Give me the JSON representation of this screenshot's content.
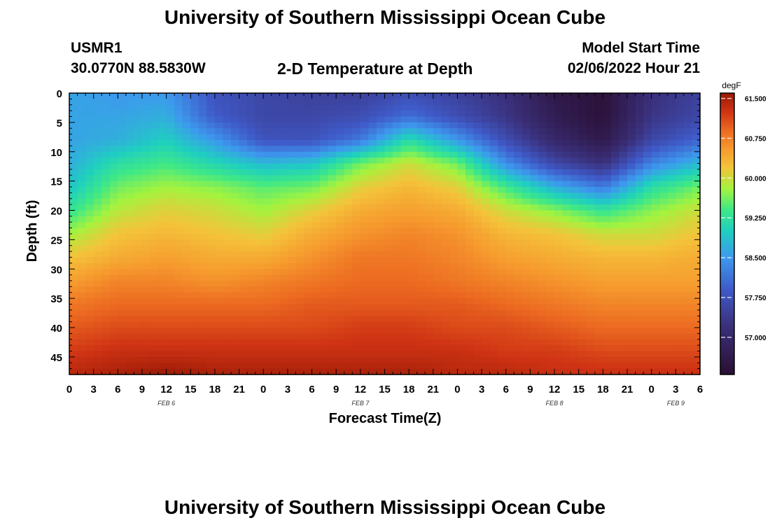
{
  "header": {
    "title_top": "University of Southern Mississippi Ocean Cube",
    "station_id": "USMR1",
    "coordinates": "30.0770N  88.5830W",
    "plot_title": "2-D Temperature at Depth",
    "model_start_label": "Model Start Time",
    "model_start_value": "02/06/2022 Hour 21",
    "title_bottom": "University of Southern Mississippi Ocean Cube"
  },
  "chart_data": {
    "type": "heatmap",
    "title": "2-D Temperature at Depth",
    "xlabel": "Forecast Time(Z)",
    "ylabel": "Depth (ft)",
    "x_range_hours": [
      0,
      78
    ],
    "x_tick_labels": [
      "0",
      "3",
      "6",
      "9",
      "12",
      "15",
      "18",
      "21",
      "0",
      "3",
      "6",
      "9",
      "12",
      "15",
      "18",
      "21",
      "0",
      "3",
      "6",
      "9",
      "12",
      "15",
      "18",
      "21",
      "0",
      "3",
      "6"
    ],
    "date_labels": [
      {
        "text": "FEB 6",
        "hour": 12
      },
      {
        "text": "FEB 7",
        "hour": 36
      },
      {
        "text": "FEB 8",
        "hour": 60
      },
      {
        "text": "FEB 9",
        "hour": 75
      }
    ],
    "ylim": [
      0,
      48
    ],
    "y_ticks": [
      0,
      5,
      10,
      15,
      20,
      25,
      30,
      35,
      40,
      45
    ],
    "colorbar": {
      "unit": "degF",
      "range": [
        56.3,
        61.6
      ],
      "tick_labels": [
        "61.500",
        "60.750",
        "60.000",
        "59.250",
        "58.500",
        "57.750",
        "57.000"
      ],
      "tick_values": [
        61.5,
        60.75,
        60.0,
        59.25,
        58.5,
        57.75,
        57.0
      ]
    },
    "profiles": {
      "hours": [
        0,
        6,
        12,
        18,
        24,
        30,
        36,
        42,
        48,
        54,
        60,
        66,
        72,
        78
      ],
      "depths_ft": [
        0,
        4,
        8,
        12,
        16,
        20,
        24,
        28,
        32,
        36,
        40,
        44,
        48
      ],
      "temperature_degF": [
        [
          58.6,
          58.6,
          58.6,
          58.7,
          58.9,
          59.3,
          59.8,
          60.2,
          60.5,
          60.8,
          61.0,
          61.2,
          61.4
        ],
        [
          58.5,
          58.6,
          58.7,
          59.2,
          59.6,
          59.9,
          60.2,
          60.4,
          60.7,
          60.9,
          61.1,
          61.3,
          61.5
        ],
        [
          58.5,
          58.7,
          59.0,
          59.4,
          59.8,
          60.1,
          60.3,
          60.5,
          60.7,
          60.9,
          61.1,
          61.3,
          61.6
        ],
        [
          57.8,
          57.9,
          58.5,
          59.1,
          59.7,
          60.0,
          60.2,
          60.4,
          60.6,
          60.9,
          61.1,
          61.3,
          61.5
        ],
        [
          57.6,
          57.6,
          57.8,
          58.8,
          59.5,
          59.8,
          60.1,
          60.4,
          60.7,
          60.9,
          61.1,
          61.3,
          61.5
        ],
        [
          57.5,
          57.6,
          57.8,
          58.9,
          59.6,
          60.1,
          60.4,
          60.6,
          60.8,
          61.0,
          61.1,
          61.3,
          61.5
        ],
        [
          57.5,
          57.7,
          58.2,
          59.6,
          60.1,
          60.4,
          60.6,
          60.8,
          60.9,
          61.0,
          61.2,
          61.3,
          61.5
        ],
        [
          57.7,
          58.1,
          59.2,
          60.0,
          60.3,
          60.5,
          60.7,
          60.8,
          60.9,
          61.0,
          61.2,
          61.3,
          61.5
        ],
        [
          57.5,
          57.7,
          58.5,
          59.6,
          60.1,
          60.4,
          60.6,
          60.7,
          60.8,
          61.0,
          61.1,
          61.3,
          61.4
        ],
        [
          57.2,
          57.3,
          57.7,
          58.4,
          59.4,
          60.0,
          60.3,
          60.5,
          60.7,
          60.9,
          61.1,
          61.2,
          61.4
        ],
        [
          56.6,
          56.7,
          57.0,
          57.6,
          58.7,
          59.7,
          60.2,
          60.4,
          60.6,
          60.8,
          61.0,
          61.2,
          61.3
        ],
        [
          56.4,
          56.4,
          56.6,
          57.2,
          58.2,
          59.3,
          60.0,
          60.3,
          60.5,
          60.7,
          60.9,
          61.1,
          61.3
        ],
        [
          57.2,
          57.3,
          57.6,
          58.3,
          59.2,
          59.7,
          60.0,
          60.3,
          60.5,
          60.7,
          60.9,
          61.1,
          61.3
        ],
        [
          57.5,
          57.6,
          58.0,
          58.8,
          59.6,
          60.0,
          60.2,
          60.4,
          60.5,
          60.7,
          60.9,
          61.1,
          61.3
        ]
      ]
    }
  },
  "colors": {
    "ramp": [
      "#2a0f33",
      "#3a2f7a",
      "#3f5ac8",
      "#3d99ee",
      "#1fcfc0",
      "#3ee887",
      "#a4f33e",
      "#f4c33a",
      "#f69a2e",
      "#ec6a21",
      "#cf3314",
      "#9a1a06"
    ],
    "ramp_values": [
      56.3,
      57.2,
      57.9,
      58.5,
      59.0,
      59.4,
      59.8,
      60.2,
      60.55,
      60.9,
      61.25,
      61.6
    ]
  }
}
